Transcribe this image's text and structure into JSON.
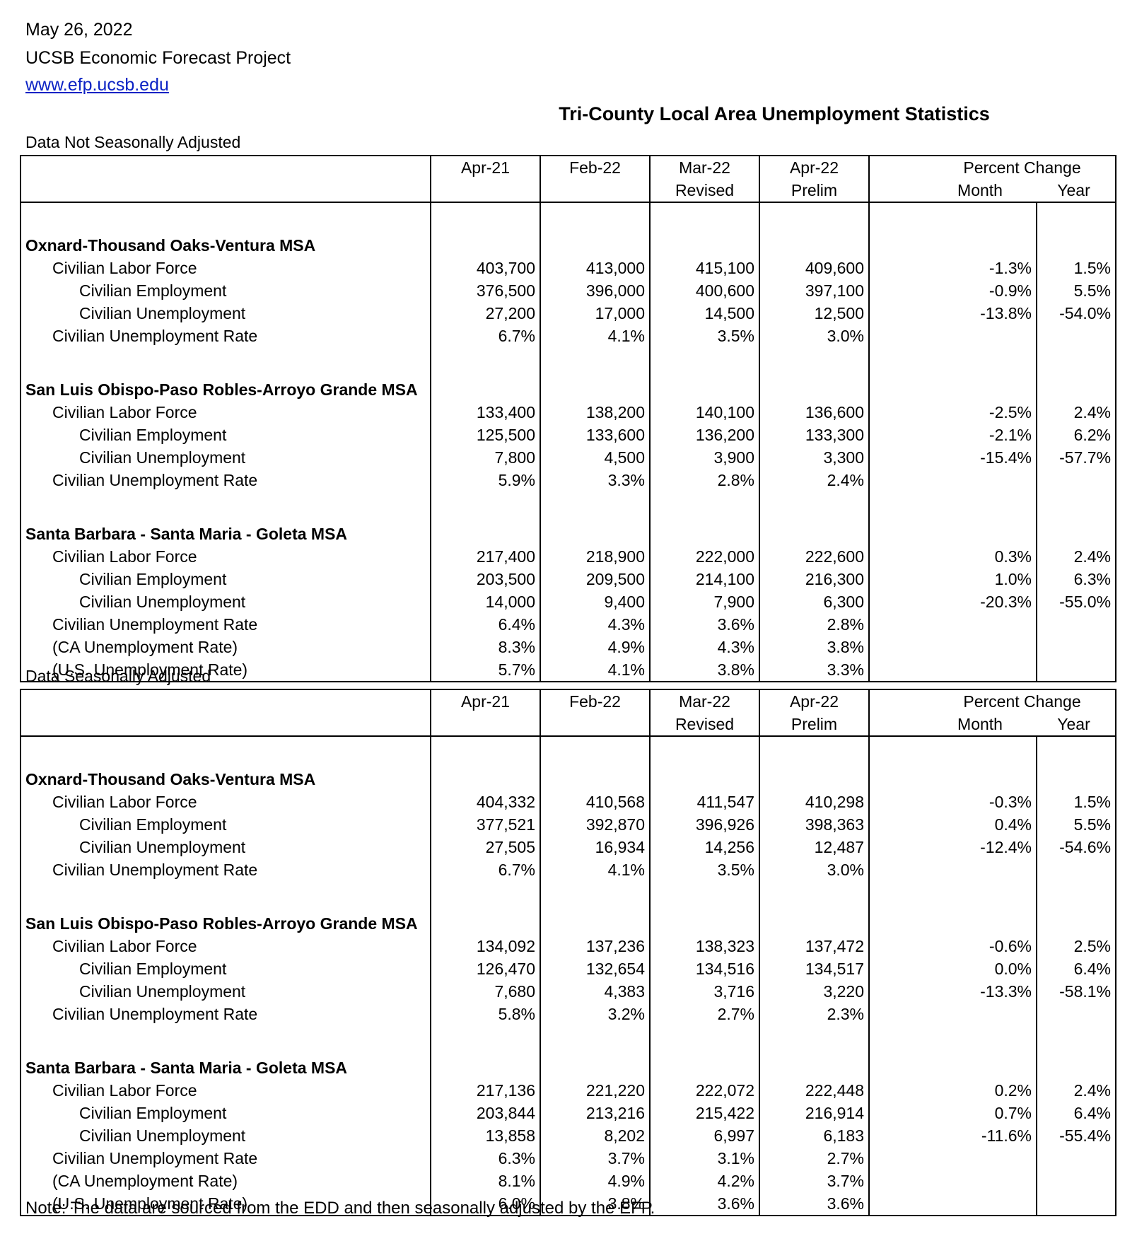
{
  "header": {
    "date": "May 26, 2022",
    "org": "UCSB Economic Forecast Project",
    "url": "www.efp.ucsb.edu"
  },
  "title": "Tri-County Local Area Unemployment Statistics",
  "columns": {
    "c1": "Apr-21",
    "c2": "Feb-22",
    "c3": "Mar-22",
    "c3_sub": "Revised",
    "c4": "Apr-22",
    "c4_sub": "Prelim",
    "pct": "Percent Change",
    "month": "Month",
    "year": "Year"
  },
  "tables": [
    {
      "label": "Data Not Seasonally Adjusted",
      "groups": [
        {
          "name": "Oxnard-Thousand Oaks-Ventura MSA",
          "rows": [
            {
              "label": "Civilian Labor Force",
              "indent": 1,
              "values": [
                "403,700",
                "413,000",
                "415,100",
                "409,600"
              ],
              "month": "-1.3%",
              "year": "1.5%"
            },
            {
              "label": "Civilian Employment",
              "indent": 2,
              "values": [
                "376,500",
                "396,000",
                "400,600",
                "397,100"
              ],
              "month": "-0.9%",
              "year": "5.5%"
            },
            {
              "label": "Civilian Unemployment",
              "indent": 2,
              "values": [
                "27,200",
                "17,000",
                "14,500",
                "12,500"
              ],
              "month": "-13.8%",
              "year": "-54.0%"
            },
            {
              "label": "Civilian Unemployment Rate",
              "indent": 1,
              "values": [
                "6.7%",
                "4.1%",
                "3.5%",
                "3.0%"
              ],
              "month": "",
              "year": ""
            }
          ]
        },
        {
          "name": "San Luis Obispo-Paso Robles-Arroyo Grande MSA",
          "rows": [
            {
              "label": "Civilian Labor Force",
              "indent": 1,
              "values": [
                "133,400",
                "138,200",
                "140,100",
                "136,600"
              ],
              "month": "-2.5%",
              "year": "2.4%"
            },
            {
              "label": "Civilian Employment",
              "indent": 2,
              "values": [
                "125,500",
                "133,600",
                "136,200",
                "133,300"
              ],
              "month": "-2.1%",
              "year": "6.2%"
            },
            {
              "label": "Civilian Unemployment",
              "indent": 2,
              "values": [
                "7,800",
                "4,500",
                "3,900",
                "3,300"
              ],
              "month": "-15.4%",
              "year": "-57.7%"
            },
            {
              "label": "Civilian Unemployment Rate",
              "indent": 1,
              "values": [
                "5.9%",
                "3.3%",
                "2.8%",
                "2.4%"
              ],
              "month": "",
              "year": ""
            }
          ]
        },
        {
          "name": "Santa Barbara - Santa Maria - Goleta MSA",
          "rows": [
            {
              "label": "Civilian Labor Force",
              "indent": 1,
              "values": [
                "217,400",
                "218,900",
                "222,000",
                "222,600"
              ],
              "month": "0.3%",
              "year": "2.4%"
            },
            {
              "label": "Civilian Employment",
              "indent": 2,
              "values": [
                "203,500",
                "209,500",
                "214,100",
                "216,300"
              ],
              "month": "1.0%",
              "year": "6.3%"
            },
            {
              "label": "Civilian Unemployment",
              "indent": 2,
              "values": [
                "14,000",
                "9,400",
                "7,900",
                "6,300"
              ],
              "month": "-20.3%",
              "year": "-55.0%"
            },
            {
              "label": "Civilian Unemployment Rate",
              "indent": 1,
              "values": [
                "6.4%",
                "4.3%",
                "3.6%",
                "2.8%"
              ],
              "month": "",
              "year": ""
            },
            {
              "label": "(CA Unemployment Rate)",
              "indent": 1,
              "values": [
                "8.3%",
                "4.9%",
                "4.3%",
                "3.8%"
              ],
              "month": "",
              "year": ""
            },
            {
              "label": "(U.S. Unemployment Rate)",
              "indent": 1,
              "values": [
                "5.7%",
                "4.1%",
                "3.8%",
                "3.3%"
              ],
              "month": "",
              "year": ""
            }
          ]
        }
      ]
    },
    {
      "label": "Data Seasonally Adjusted",
      "groups": [
        {
          "name": "Oxnard-Thousand Oaks-Ventura MSA",
          "rows": [
            {
              "label": "Civilian Labor Force",
              "indent": 1,
              "values": [
                "404,332",
                "410,568",
                "411,547",
                "410,298"
              ],
              "month": "-0.3%",
              "year": "1.5%"
            },
            {
              "label": "Civilian Employment",
              "indent": 2,
              "values": [
                "377,521",
                "392,870",
                "396,926",
                "398,363"
              ],
              "month": "0.4%",
              "year": "5.5%"
            },
            {
              "label": "Civilian Unemployment",
              "indent": 2,
              "values": [
                "27,505",
                "16,934",
                "14,256",
                "12,487"
              ],
              "month": "-12.4%",
              "year": "-54.6%"
            },
            {
              "label": "Civilian Unemployment Rate",
              "indent": 1,
              "values": [
                "6.7%",
                "4.1%",
                "3.5%",
                "3.0%"
              ],
              "month": "",
              "year": ""
            }
          ]
        },
        {
          "name": "San Luis Obispo-Paso Robles-Arroyo Grande MSA",
          "rows": [
            {
              "label": "Civilian Labor Force",
              "indent": 1,
              "values": [
                "134,092",
                "137,236",
                "138,323",
                "137,472"
              ],
              "month": "-0.6%",
              "year": "2.5%"
            },
            {
              "label": "Civilian Employment",
              "indent": 2,
              "values": [
                "126,470",
                "132,654",
                "134,516",
                "134,517"
              ],
              "month": "0.0%",
              "year": "6.4%"
            },
            {
              "label": "Civilian Unemployment",
              "indent": 2,
              "values": [
                "7,680",
                "4,383",
                "3,716",
                "3,220"
              ],
              "month": "-13.3%",
              "year": "-58.1%"
            },
            {
              "label": "Civilian Unemployment Rate",
              "indent": 1,
              "values": [
                "5.8%",
                "3.2%",
                "2.7%",
                "2.3%"
              ],
              "month": "",
              "year": ""
            }
          ]
        },
        {
          "name": "Santa Barbara - Santa Maria - Goleta MSA",
          "rows": [
            {
              "label": "Civilian Labor Force",
              "indent": 1,
              "values": [
                "217,136",
                "221,220",
                "222,072",
                "222,448"
              ],
              "month": "0.2%",
              "year": "2.4%"
            },
            {
              "label": "Civilian Employment",
              "indent": 2,
              "values": [
                "203,844",
                "213,216",
                "215,422",
                "216,914"
              ],
              "month": "0.7%",
              "year": "6.4%"
            },
            {
              "label": "Civilian Unemployment",
              "indent": 2,
              "values": [
                "13,858",
                "8,202",
                "6,997",
                "6,183"
              ],
              "month": "-11.6%",
              "year": "-55.4%"
            },
            {
              "label": "Civilian Unemployment Rate",
              "indent": 1,
              "values": [
                "6.3%",
                "3.7%",
                "3.1%",
                "2.7%"
              ],
              "month": "",
              "year": ""
            },
            {
              "label": "(CA Unemployment Rate)",
              "indent": 1,
              "values": [
                "8.1%",
                "4.9%",
                "4.2%",
                "3.7%"
              ],
              "month": "",
              "year": ""
            },
            {
              "label": "(U.S. Unemployment Rate)",
              "indent": 1,
              "values": [
                "6.0%",
                "3.8%",
                "3.6%",
                "3.6%"
              ],
              "month": "",
              "year": ""
            }
          ]
        }
      ]
    }
  ],
  "note": "Note: The data are sourced from the EDD and then seasonally adjusted by the EFP."
}
